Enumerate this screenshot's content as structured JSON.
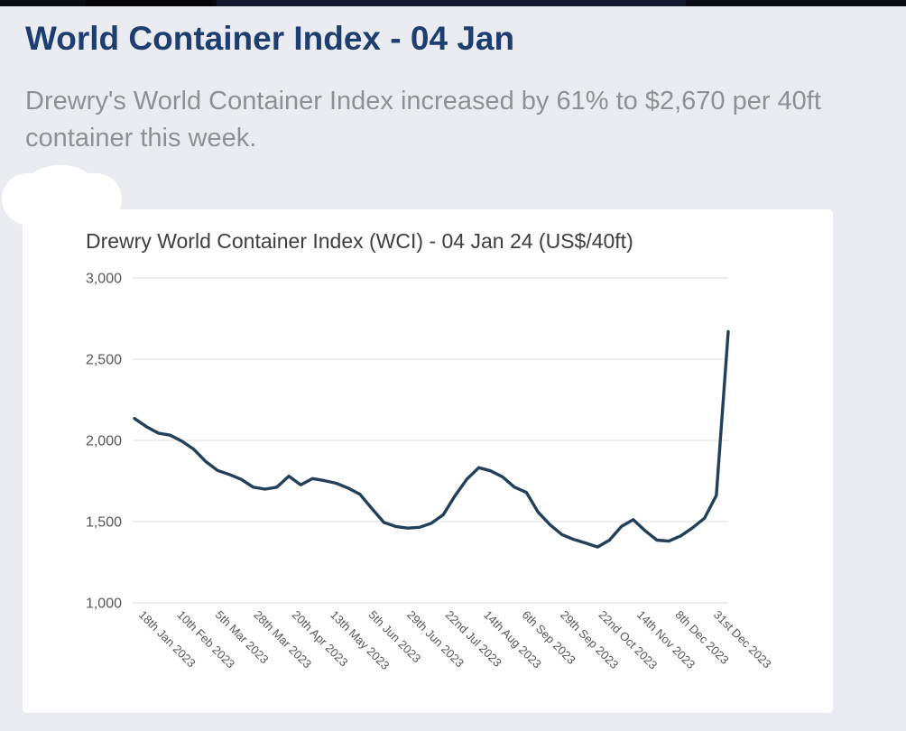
{
  "header": {
    "title": "World Container Index - 04 Jan",
    "summary": "Drewry's World Container Index increased by 61% to $2,670 per 40ft container this week."
  },
  "chart": {
    "title": "Drewry World Container Index (WCI) - 04 Jan 24 (US$/40ft)"
  },
  "chart_data": {
    "type": "line",
    "title": "Drewry World Container Index (WCI) - 04 Jan 24 (US$/40ft)",
    "xlabel": "",
    "ylabel": "",
    "unit": "US$ per 40ft container",
    "ylim": [
      1000,
      3000
    ],
    "grid": true,
    "legend": false,
    "y_ticks": [
      3000,
      2500,
      2000,
      1500,
      1000
    ],
    "y_tick_labels": [
      "3,000",
      "2,500",
      "2,000",
      "1,500",
      "1,000"
    ],
    "x_tick_labels": [
      "18th Jan 2023",
      "10th Feb 2023",
      "5th Mar 2023",
      "28th Mar 2023",
      "20th Apr 2023",
      "13th May 2023",
      "5th Jun 2023",
      "29th Jun 2023",
      "22nd Jul 2023",
      "14th Aug 2023",
      "6th Sep 2023",
      "29th Sep 2023",
      "22nd Oct 2023",
      "14th Nov 2023",
      "8th Dec 2023",
      "31st Dec 2023"
    ],
    "x_description": "Weekly index readings from 18 Jan 2023 through 04 Jan 2024 (last point 04 Jan 24 = 2,670)",
    "series": [
      {
        "name": "WCI (US$/40ft)",
        "values": [
          2135,
          2085,
          2045,
          2032,
          1995,
          1945,
          1870,
          1815,
          1790,
          1760,
          1712,
          1700,
          1712,
          1780,
          1726,
          1765,
          1752,
          1736,
          1706,
          1668,
          1580,
          1495,
          1470,
          1460,
          1465,
          1490,
          1542,
          1660,
          1762,
          1832,
          1812,
          1775,
          1712,
          1680,
          1558,
          1480,
          1420,
          1390,
          1368,
          1344,
          1386,
          1470,
          1512,
          1444,
          1386,
          1380,
          1412,
          1462,
          1521,
          1661,
          2670
        ]
      }
    ]
  },
  "colors": {
    "title_accent": "#1e3e70",
    "body_text": "#8d9095",
    "line": "#22405a",
    "page_bg": "#eaecf2",
    "card_bg": "#fefefe",
    "grid": "#e6e6e9",
    "axis_text": "#55575c",
    "top_bar": "#0b0c11"
  }
}
